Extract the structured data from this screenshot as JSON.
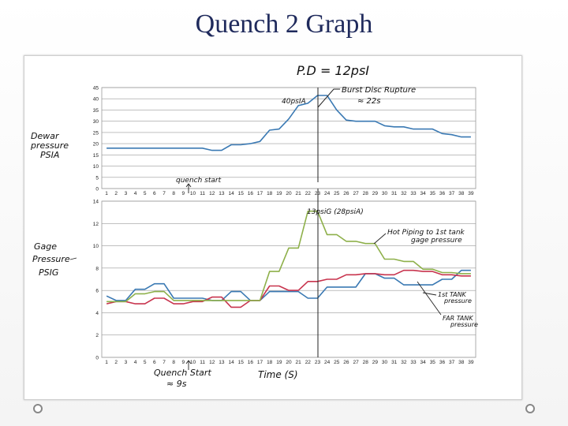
{
  "slide": {
    "title": "Quench 2 Graph"
  },
  "annotations": {
    "pd": "P.D = 12psI",
    "burst": [
      "Burst Disc Rupture",
      "≈ 22s"
    ],
    "peak_top": "40psIA",
    "dewar_label": [
      "Dewar",
      "pressure",
      "PSIA"
    ],
    "quench_top": "quench start",
    "gage_label": [
      "Gage",
      "Pressure",
      "PSIG"
    ],
    "peak_bottom": "13psiG (28psiA)",
    "hot_piping": [
      "Hot Piping to 1st tank",
      "gage pressure"
    ],
    "first_tank": [
      "1st TANK",
      "pressure"
    ],
    "far_tank": [
      "FAR TANK",
      "pressure"
    ],
    "quench_bottom": [
      "Quench Start",
      "≈ 9s"
    ],
    "time_label": "Time (S)"
  },
  "chart_data": [
    {
      "type": "line",
      "x": [
        1,
        2,
        3,
        4,
        5,
        6,
        7,
        8,
        9,
        10,
        11,
        12,
        13,
        14,
        15,
        16,
        17,
        18,
        19,
        20,
        21,
        22,
        23,
        24,
        25,
        26,
        27,
        28,
        29,
        30,
        31,
        32,
        33,
        34,
        35,
        36,
        37,
        38,
        39
      ],
      "ylim": [
        0,
        45
      ],
      "yticks": [
        0,
        5,
        10,
        15,
        20,
        25,
        30,
        35,
        40,
        45
      ],
      "series": [
        {
          "values": [
            18,
            18,
            18,
            18,
            18,
            18,
            18,
            18,
            18,
            18,
            18,
            17,
            17,
            19.5,
            19.5,
            20,
            21,
            26,
            26.5,
            31,
            37,
            38,
            41.5,
            41.5,
            35,
            30.5,
            30,
            30,
            30,
            28,
            27.5,
            27.5,
            26.5,
            26.5,
            26.5,
            24.5,
            24,
            23,
            23
          ],
          "color": "#3a79b3"
        }
      ]
    },
    {
      "type": "line",
      "x": [
        1,
        2,
        3,
        4,
        5,
        6,
        7,
        8,
        9,
        10,
        11,
        12,
        13,
        14,
        15,
        16,
        17,
        18,
        19,
        20,
        21,
        22,
        23,
        24,
        25,
        26,
        27,
        28,
        29,
        30,
        31,
        32,
        33,
        34,
        35,
        36,
        37,
        38,
        39
      ],
      "ylim": [
        0,
        14
      ],
      "yticks": [
        0,
        2,
        4,
        6,
        8,
        10,
        12,
        14
      ],
      "series": [
        {
          "values": [
            5.5,
            5.1,
            5.1,
            6.1,
            6.1,
            6.6,
            6.6,
            5.3,
            5.3,
            5.3,
            5.3,
            5.1,
            5.1,
            5.9,
            5.9,
            5.1,
            5.1,
            5.9,
            5.9,
            5.9,
            5.9,
            5.3,
            5.3,
            6.3,
            6.3,
            6.3,
            6.3,
            7.5,
            7.5,
            7.1,
            7.1,
            6.5,
            6.5,
            6.5,
            6.5,
            7.0,
            7.0,
            7.8,
            7.8
          ],
          "color": "#3a79b3"
        },
        {
          "values": [
            4.8,
            5.0,
            5.0,
            4.8,
            4.8,
            5.3,
            5.3,
            4.8,
            4.8,
            5.0,
            5.0,
            5.4,
            5.4,
            4.5,
            4.5,
            5.1,
            5.1,
            6.4,
            6.4,
            6.0,
            6.0,
            6.8,
            6.8,
            7.0,
            7.0,
            7.4,
            7.4,
            7.5,
            7.5,
            7.4,
            7.4,
            7.8,
            7.8,
            7.7,
            7.7,
            7.4,
            7.4,
            7.3,
            7.3
          ],
          "color": "#c8344e"
        },
        {
          "values": [
            5.0,
            5.0,
            5.0,
            5.7,
            5.7,
            5.9,
            5.9,
            5.1,
            5.1,
            5.1,
            5.1,
            5.1,
            5.1,
            5.1,
            5.1,
            5.1,
            5.1,
            7.7,
            7.7,
            9.8,
            9.8,
            13.1,
            13.1,
            11.0,
            11.0,
            10.4,
            10.4,
            10.2,
            10.2,
            8.8,
            8.8,
            8.6,
            8.6,
            7.9,
            7.9,
            7.6,
            7.6,
            7.5,
            7.5
          ],
          "color": "#8eb04a"
        }
      ]
    }
  ]
}
